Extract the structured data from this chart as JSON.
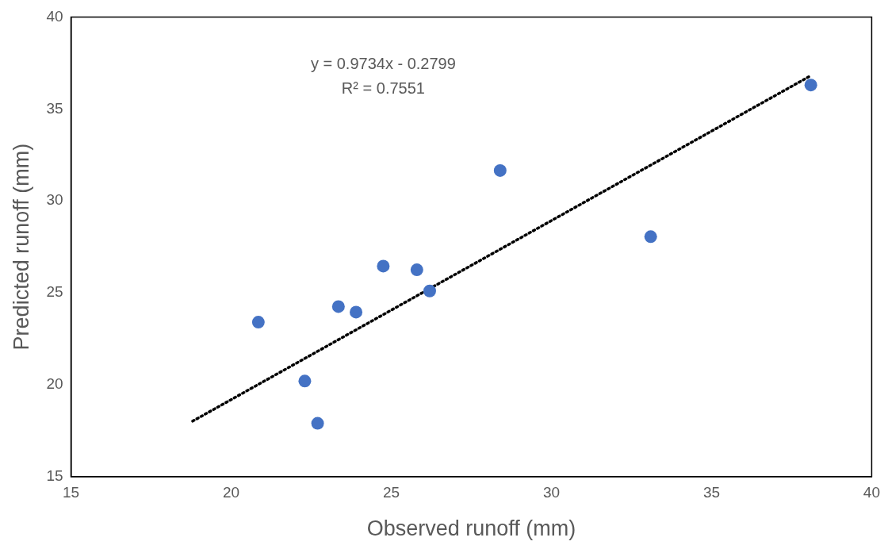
{
  "chart_data": {
    "type": "scatter",
    "xlabel": "Observed runoff (mm)",
    "ylabel": "Predicted runoff (mm)",
    "annotations": [
      "y = 0.9734x - 0.2799",
      "R² = 0.7551"
    ],
    "series": [
      {
        "type": "scatter",
        "color": "#4472c4",
        "marker": "circle",
        "x": [
          20.85,
          22.3,
          22.7,
          23.35,
          23.9,
          24.75,
          25.8,
          26.2,
          28.4,
          33.1,
          38.1
        ],
        "values": [
          23.4,
          20.2,
          17.9,
          24.25,
          23.95,
          26.45,
          26.25,
          25.1,
          31.65,
          28.05,
          36.3
        ]
      },
      {
        "type": "line",
        "color": "#000000",
        "line_style": "dotted",
        "marker": "none",
        "x": [
          18.8,
          38.1
        ],
        "values": [
          18.02,
          36.81
        ]
      }
    ],
    "xlim": [
      15,
      40
    ],
    "xticks": [
      15,
      20,
      25,
      30,
      35,
      40
    ],
    "ylim": [
      15,
      40
    ],
    "yticks": [
      15,
      20,
      25,
      30,
      35,
      40
    ],
    "grid": false,
    "legend": false
  }
}
